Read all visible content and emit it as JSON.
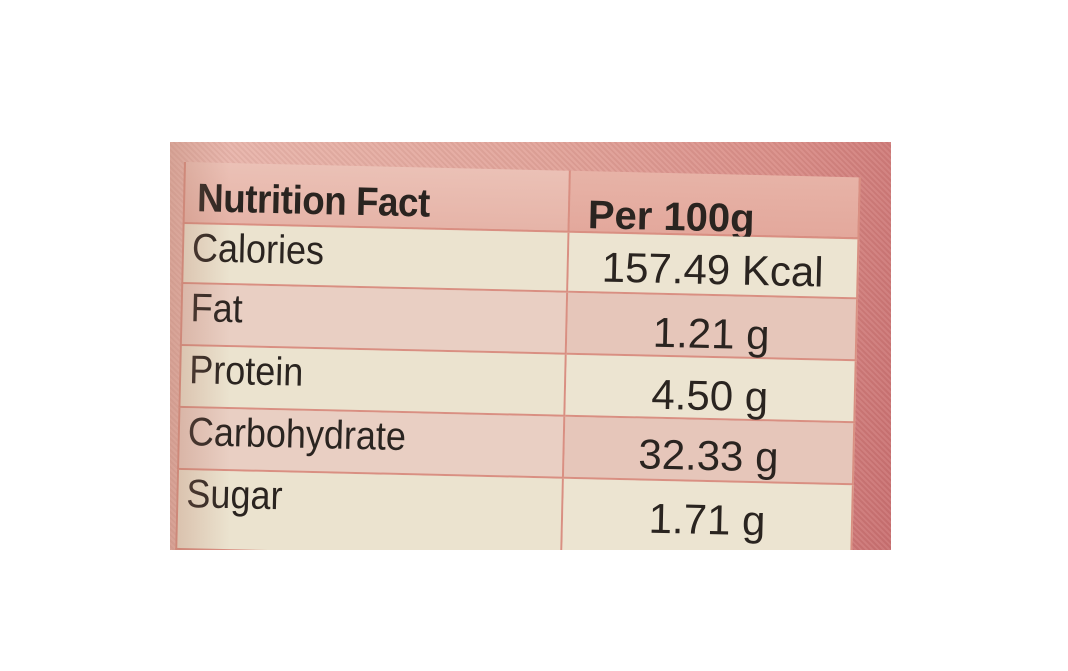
{
  "table": {
    "header": {
      "name": "Nutrition Fact",
      "value": "Per 100g"
    },
    "rows": [
      {
        "name": "Calories",
        "value": "157.49 Kcal"
      },
      {
        "name": "Fat",
        "value": "1.21 g"
      },
      {
        "name": "Protein",
        "value": "4.50 g"
      },
      {
        "name": "Carbohydrate",
        "value": "32.33 g"
      },
      {
        "name": "Sugar",
        "value": "1.71 g"
      }
    ]
  },
  "colors": {
    "background": "#ffffff",
    "label_pink": "#e2a49a",
    "row_light": "#ebe3cf",
    "row_pink": "#e9cfc3",
    "grid_lines": "#d98f82",
    "text": "#2a2420"
  }
}
